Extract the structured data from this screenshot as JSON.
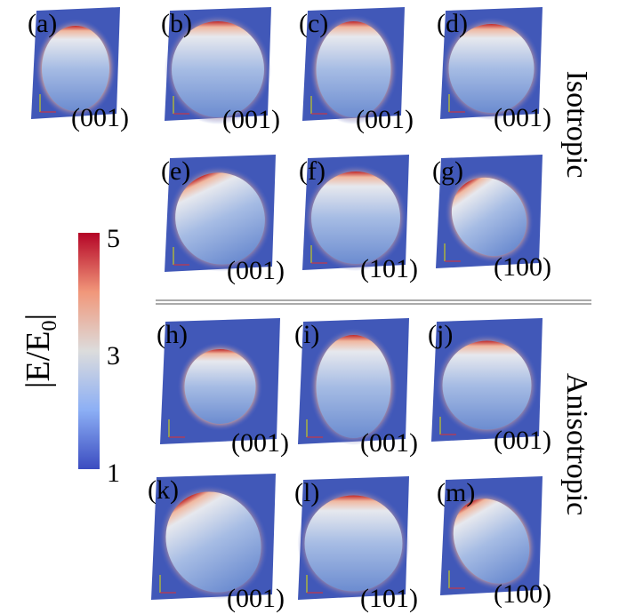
{
  "colorbar": {
    "label_parts": [
      "|E/E",
      "0",
      "|"
    ],
    "ticks": [
      "5",
      "3",
      "1"
    ]
  },
  "groups": [
    {
      "label": "Isotropic",
      "panels": [
        {
          "label": "(a)",
          "orientation": "(001)"
        },
        {
          "label": "(b)",
          "orientation": "(001)"
        },
        {
          "label": "(c)",
          "orientation": "(001)"
        },
        {
          "label": "(d)",
          "orientation": "(001)"
        },
        {
          "label": "(e)",
          "orientation": "(001)"
        },
        {
          "label": "(f)",
          "orientation": "(101)"
        },
        {
          "label": "(g)",
          "orientation": "(100)"
        }
      ]
    },
    {
      "label": "Anisotropic",
      "panels": [
        {
          "label": "(h)",
          "orientation": "(001)"
        },
        {
          "label": "(i)",
          "orientation": "(001)"
        },
        {
          "label": "(j)",
          "orientation": "(001)"
        },
        {
          "label": "(k)",
          "orientation": "(001)"
        },
        {
          "label": "(l)",
          "orientation": "(101)"
        },
        {
          "label": "(m)",
          "orientation": "(100)"
        }
      ]
    }
  ]
}
